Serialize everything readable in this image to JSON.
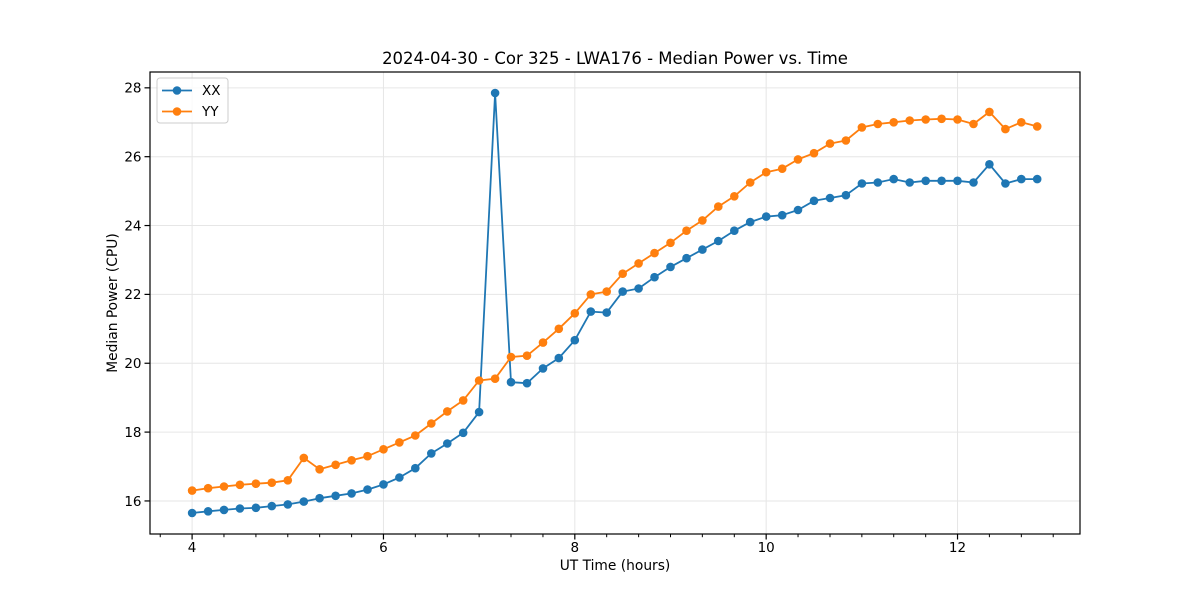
{
  "chart_data": {
    "type": "line",
    "title": "2024-04-30 - Cor 325 - LWA176 - Median Power vs. Time",
    "xlabel": "UT Time (hours)",
    "ylabel": "Median Power (CPU)",
    "xlim": [
      3.56,
      13.28
    ],
    "ylim": [
      15.04,
      28.46
    ],
    "grid": true,
    "legend_position": "upper left",
    "colors": {
      "XX": "#1f77b4",
      "YY": "#ff7f0e",
      "grid": "#e6e6e6",
      "spine": "#000000",
      "legend_border": "#cccccc"
    },
    "x_major_ticks": [
      4,
      6,
      8,
      10,
      12
    ],
    "x_minor_ticks": [
      3.667,
      4.333,
      4.667,
      5,
      5.333,
      5.667,
      6.333,
      6.667,
      7,
      7.333,
      7.667,
      8.333,
      8.667,
      9,
      9.333,
      9.667,
      10.333,
      10.667,
      11,
      11.333,
      11.667,
      12.333,
      12.667,
      13
    ],
    "y_major_ticks": [
      16,
      18,
      20,
      22,
      24,
      26,
      28
    ],
    "x": [
      4,
      4.167,
      4.333,
      4.5,
      4.667,
      4.833,
      5,
      5.167,
      5.333,
      5.5,
      5.667,
      5.833,
      6,
      6.167,
      6.333,
      6.5,
      6.667,
      6.833,
      7,
      7.167,
      7.333,
      7.5,
      7.667,
      7.833,
      8,
      8.167,
      8.333,
      8.5,
      8.667,
      8.833,
      9,
      9.167,
      9.333,
      9.5,
      9.667,
      9.833,
      10,
      10.167,
      10.333,
      10.5,
      10.667,
      10.833,
      11,
      11.167,
      11.333,
      11.5,
      11.667,
      11.833,
      12,
      12.167,
      12.333,
      12.5,
      12.667,
      12.833
    ],
    "series": [
      {
        "name": "XX",
        "color": "#1f77b4",
        "values": [
          15.65,
          15.7,
          15.74,
          15.78,
          15.8,
          15.85,
          15.9,
          15.98,
          16.08,
          16.15,
          16.22,
          16.33,
          16.48,
          16.68,
          16.95,
          17.38,
          17.67,
          17.98,
          18.58,
          27.85,
          19.45,
          19.42,
          19.85,
          20.15,
          20.67,
          21.5,
          21.47,
          22.08,
          22.17,
          22.5,
          22.8,
          23.05,
          23.3,
          23.55,
          23.85,
          24.1,
          24.26,
          24.3,
          24.45,
          24.72,
          24.8,
          24.88,
          25.22,
          25.25,
          25.35,
          25.25,
          25.3,
          25.3,
          25.3,
          25.25,
          25.78,
          25.22,
          25.35,
          25.35
        ]
      },
      {
        "name": "YY",
        "color": "#ff7f0e",
        "values": [
          16.3,
          16.37,
          16.42,
          16.47,
          16.5,
          16.53,
          16.6,
          17.25,
          16.92,
          17.05,
          17.18,
          17.3,
          17.5,
          17.7,
          17.9,
          18.25,
          18.6,
          18.92,
          19.5,
          19.55,
          20.18,
          20.22,
          20.6,
          21,
          21.45,
          22,
          22.08,
          22.6,
          22.9,
          23.2,
          23.5,
          23.85,
          24.15,
          24.55,
          24.85,
          25.25,
          25.55,
          25.65,
          25.92,
          26.1,
          26.38,
          26.47,
          26.85,
          26.95,
          27,
          27.05,
          27.08,
          27.1,
          27.08,
          26.95,
          27.3,
          26.8,
          27,
          26.88
        ]
      }
    ]
  }
}
